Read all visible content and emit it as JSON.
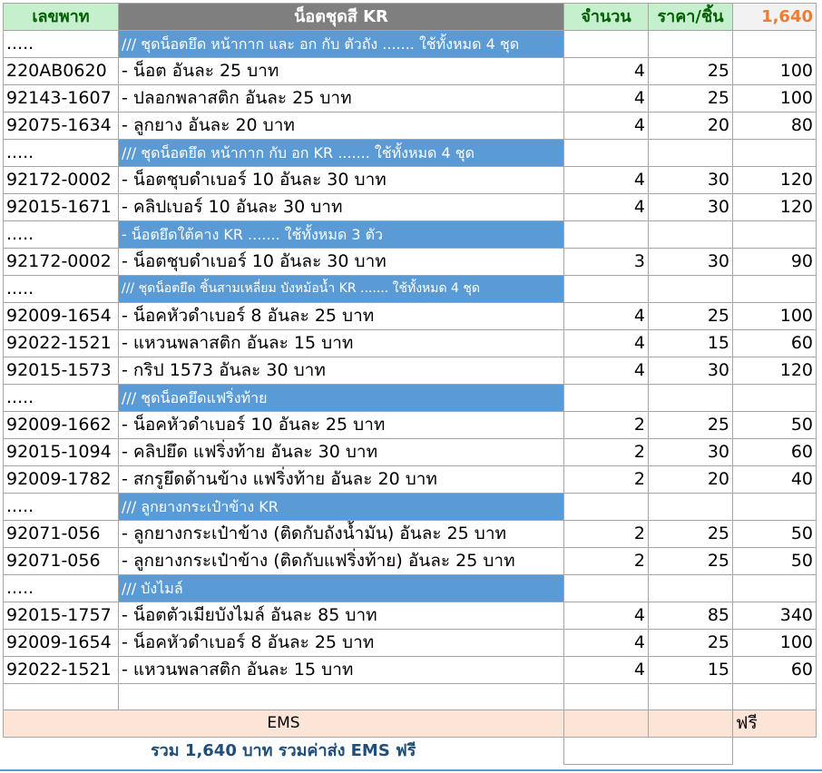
{
  "header": {
    "part_no": "เลขพาท",
    "title": "น็อตชุดสี KR",
    "qty": "จำนวน",
    "unit_price": "ราคา/ชิ้น",
    "grand_total": "1,640"
  },
  "rows": [
    {
      "type": "section",
      "code": ".....",
      "text": "/// ชุดน็อตยึด หน้ากาก และ อก กับ ตัวถัง ....... ใช้ทั้งหมด 4 ชุด"
    },
    {
      "type": "item",
      "code": "220AB0620",
      "desc": "- น็อต อันละ 25 บาท",
      "qty": "4",
      "price": "25",
      "total": "100"
    },
    {
      "type": "item",
      "code": "92143-1607",
      "desc": "- ปลอกพลาสติก อันละ 25 บาท",
      "qty": "4",
      "price": "25",
      "total": "100"
    },
    {
      "type": "item",
      "code": "92075-1634",
      "desc": "- ลูกยาง อันละ 20 บาท",
      "qty": "4",
      "price": "20",
      "total": "80"
    },
    {
      "type": "section",
      "code": ".....",
      "text": "/// ชุดน็อตยึด หน้ากาก กับ อก KR ....... ใช้ทั้งหมด 4 ชุด"
    },
    {
      "type": "item",
      "code": "92172-0002",
      "desc": "- น็อตชุบดำเบอร์ 10 อันละ 30 บาท",
      "qty": "4",
      "price": "30",
      "total": "120"
    },
    {
      "type": "item",
      "code": "92015-1671",
      "desc": "- คลิปเบอร์ 10 อันละ 30 บาท",
      "qty": "4",
      "price": "30",
      "total": "120"
    },
    {
      "type": "section",
      "code": ".....",
      "text": "- น็อตยึดใต้คาง KR ....... ใช้ทั้งหมด 3 ตัว"
    },
    {
      "type": "item",
      "code": "92172-0002",
      "desc": "- น็อตชุบดำเบอร์ 10 อันละ 30 บาท",
      "qty": "3",
      "price": "30",
      "total": "90"
    },
    {
      "type": "section",
      "code": ".....",
      "text": "/// ชุดน็อตยึด ชิ้นสามเหลี่ยม บังหม้อน้ำ KR ....... ใช้ทั้งหมด 4 ชุด",
      "small": true
    },
    {
      "type": "item",
      "code": "92009-1654",
      "desc": "- น็อคหัวดำเบอร์ 8 อันละ 25 บาท",
      "qty": "4",
      "price": "25",
      "total": "100"
    },
    {
      "type": "item",
      "code": "92022-1521",
      "desc": "- แหวนพลาสติก อันละ 15 บาท",
      "qty": "4",
      "price": "15",
      "total": "60"
    },
    {
      "type": "item",
      "code": "92015-1573",
      "desc": "- กริป 1573 อันละ 30 บาท",
      "qty": "4",
      "price": "30",
      "total": "120"
    },
    {
      "type": "section",
      "code": ".....",
      "text": "/// ชุดน็อคยึดแฟริ่งท้าย"
    },
    {
      "type": "item",
      "code": "92009-1662",
      "desc": "- น็อคหัวดำเบอร์ 10 อันละ 25 บาท",
      "qty": "2",
      "price": "25",
      "total": "50"
    },
    {
      "type": "item",
      "code": "92015-1094",
      "desc": "- คลิปยึด แฟริ่งท้าย อันละ 30 บาท",
      "qty": "2",
      "price": "30",
      "total": "60"
    },
    {
      "type": "item",
      "code": "92009-1782",
      "desc": "- สกรูยึดด้านข้าง แฟริ่งท้าย อันละ 20 บาท",
      "qty": "2",
      "price": "20",
      "total": "40"
    },
    {
      "type": "section",
      "code": ".....",
      "text": "/// ลูกยางกระเป๋าข้าง KR"
    },
    {
      "type": "item",
      "code": "92071-056",
      "desc": "- ลูกยางกระเป๋าข้าง (ติดกับถังน้ำมัน)  อันละ 25 บาท",
      "qty": "2",
      "price": "25",
      "total": "50"
    },
    {
      "type": "item",
      "code": "92071-056",
      "desc": "- ลูกยางกระเป๋าข้าง (ติดกับแฟริ่งท้าย)  อันละ 25 บาท",
      "qty": "2",
      "price": "25",
      "total": "50"
    },
    {
      "type": "section",
      "code": ".....",
      "text": "/// บังไมล์"
    },
    {
      "type": "item",
      "code": "92015-1757",
      "desc": "- น็อตตัวเมียบังไมล์ อันละ 85 บาท",
      "qty": "4",
      "price": "85",
      "total": "340"
    },
    {
      "type": "item",
      "code": "92009-1654",
      "desc": "- น็อคหัวดำเบอร์ 8 อันละ 25 บาท",
      "qty": "4",
      "price": "25",
      "total": "100"
    },
    {
      "type": "item",
      "code": "92022-1521",
      "desc": "- แหวนพลาสติก อันละ 15 บาท",
      "qty": "4",
      "price": "15",
      "total": "60"
    },
    {
      "type": "blank"
    }
  ],
  "shipping": {
    "label": "EMS",
    "value": "ฟรี"
  },
  "summary": "รวม 1,640 บาท รวมค่าส่ง EMS ฟรี"
}
